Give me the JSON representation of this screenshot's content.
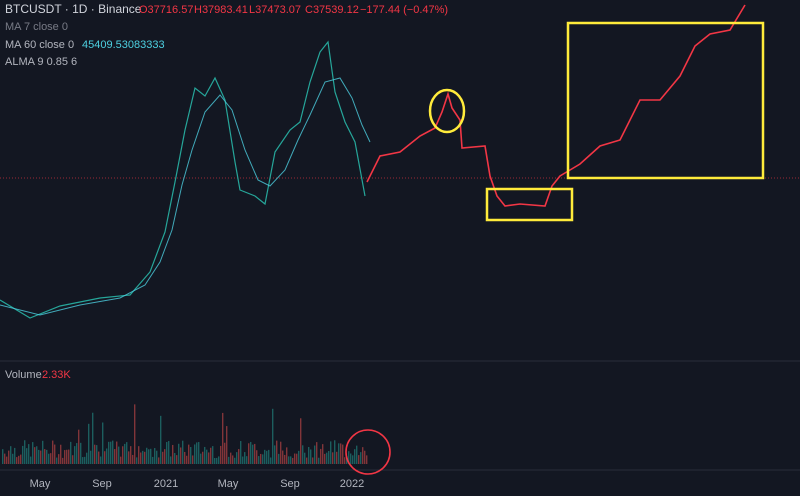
{
  "header": {
    "symbol": "BTCUSDT · 1D · Binance",
    "open": "O37716.57",
    "high": "H37983.41",
    "low": "L37473.07",
    "close": "C37539.12",
    "change": "−177.44 (−0.47%)"
  },
  "indicators": [
    {
      "label": "MA 7 close 0"
    },
    {
      "label": "MA 60 close 0",
      "value": "45409.53083333"
    },
    {
      "label": "ALMA 9 0.85 6"
    }
  ],
  "volume": {
    "label": "Volume",
    "value": "2.33K"
  },
  "x_axis": [
    "May",
    "Sep",
    "2021",
    "May",
    "Sep",
    "2022"
  ]
}
